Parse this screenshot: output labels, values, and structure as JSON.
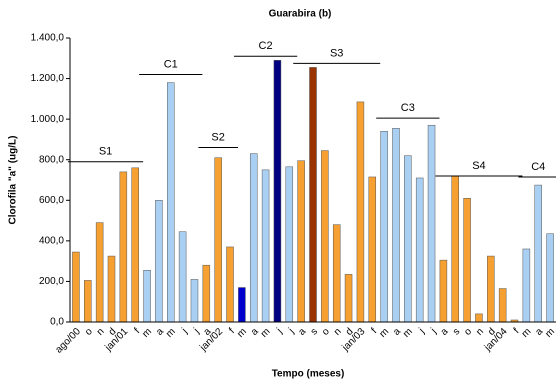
{
  "chart_data": {
    "type": "bar",
    "title": "Guarabira (b)",
    "ylabel": "Clorofila \"a\" (ug/L)",
    "xlabel": "Tempo (meses)",
    "categories": [
      "ago/00",
      "o",
      "n",
      "d",
      "jan/01",
      "f",
      "m",
      "a",
      "m",
      "j",
      "j",
      "a",
      "jan/02",
      "f",
      "m",
      "a",
      "m",
      "j",
      "j",
      "a",
      "s",
      "o",
      "n",
      "d",
      "jan/03",
      "f",
      "m",
      "a",
      "m",
      "j",
      "j",
      "a",
      "s",
      "o",
      "n",
      "d",
      "jan/04",
      "f",
      "m",
      "a",
      "m"
    ],
    "values": [
      345,
      205,
      490,
      325,
      740,
      760,
      255,
      600,
      1180,
      445,
      210,
      280,
      810,
      370,
      170,
      830,
      750,
      1290,
      765,
      795,
      1255,
      845,
      480,
      235,
      1085,
      715,
      940,
      955,
      820,
      710,
      970,
      305,
      720,
      610,
      40,
      325,
      165,
      10,
      360,
      675,
      435
    ],
    "colors": [
      "#f5a031",
      "#f5a031",
      "#f5a031",
      "#f5a031",
      "#f5a031",
      "#f5a031",
      "#a9cff2",
      "#a9cff2",
      "#a9cff2",
      "#a9cff2",
      "#a9cff2",
      "#f5a031",
      "#f5a031",
      "#f5a031",
      "#0000cc",
      "#a9cff2",
      "#a9cff2",
      "#000080",
      "#a9cff2",
      "#f5a031",
      "#993300",
      "#f5a031",
      "#f5a031",
      "#f5a031",
      "#f5a031",
      "#f5a031",
      "#a9cff2",
      "#a9cff2",
      "#a9cff2",
      "#a9cff2",
      "#a9cff2",
      "#f5a031",
      "#f5a031",
      "#f5a031",
      "#f5a031",
      "#f5a031",
      "#f5a031",
      "#f5a031",
      "#a9cff2",
      "#a9cff2",
      "#a9cff2"
    ],
    "ylim": [
      0,
      1400
    ],
    "yticks": [
      {
        "value": 0,
        "label": "0,0"
      },
      {
        "value": 200,
        "label": "200,0"
      },
      {
        "value": 400,
        "label": "400,0"
      },
      {
        "value": 600,
        "label": "600,0"
      },
      {
        "value": 800,
        "label": "800,0"
      },
      {
        "value": 1000,
        "label": "1.000,0"
      },
      {
        "value": 1200,
        "label": "1.200,0"
      },
      {
        "value": 1400,
        "label": "1.400,0"
      }
    ],
    "annotations": [
      {
        "label": "S1",
        "y": 790,
        "from": 0,
        "to": 5
      },
      {
        "label": "C1",
        "y": 1220,
        "from": 6,
        "to": 10
      },
      {
        "label": "S2",
        "y": 860,
        "from": 11,
        "to": 13
      },
      {
        "label": "C2",
        "y": 1310,
        "from": 14,
        "to": 18
      },
      {
        "label": "S3",
        "y": 1275,
        "from": 19,
        "to": 25
      },
      {
        "label": "C3",
        "y": 1005,
        "from": 26,
        "to": 30
      },
      {
        "label": "S4",
        "y": 720,
        "from": 31,
        "to": 37
      },
      {
        "label": "C4",
        "y": 715,
        "from": 38,
        "to": 40
      }
    ]
  }
}
